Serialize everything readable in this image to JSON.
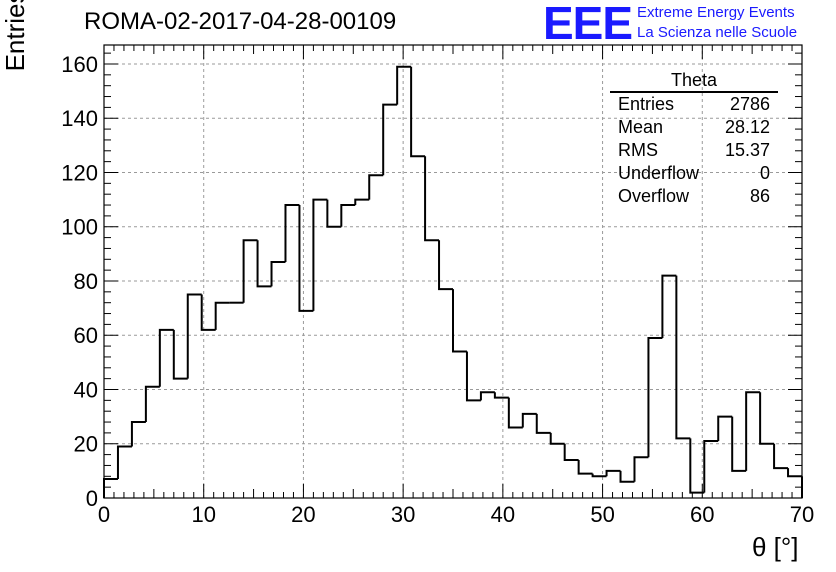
{
  "chart_data": {
    "type": "bar",
    "title": "ROMA-02-2017-04-28-00109",
    "xlabel": "θ [°]",
    "ylabel": "Entries/bin",
    "xlim": [
      0,
      70
    ],
    "ylim": [
      0,
      167
    ],
    "bin_width": 1.4,
    "x_ticks": [
      0,
      10,
      20,
      30,
      40,
      50,
      60,
      70
    ],
    "y_ticks": [
      0,
      20,
      40,
      60,
      80,
      100,
      120,
      140,
      160
    ],
    "grid": true,
    "values": [
      7,
      19,
      28,
      41,
      62,
      44,
      75,
      62,
      72,
      72,
      95,
      78,
      87,
      108,
      69,
      110,
      100,
      108,
      110,
      119,
      145,
      159,
      126,
      95,
      77,
      54,
      36,
      39,
      37,
      26,
      31,
      24,
      20,
      14,
      9,
      8,
      10,
      6,
      15,
      59,
      82,
      22,
      2,
      21,
      30,
      10,
      39,
      20,
      11,
      8
    ],
    "stats": {
      "title": "Theta",
      "rows": [
        {
          "label": "Entries",
          "value": "2786"
        },
        {
          "label": "Mean",
          "value": "28.12"
        },
        {
          "label": "RMS",
          "value": "15.37"
        },
        {
          "label": "Underflow",
          "value": "0"
        },
        {
          "label": "Overflow",
          "value": "86"
        }
      ]
    }
  },
  "logo": {
    "mark": "EEE",
    "line1": "Extreme Energy Events",
    "line2": "La Scienza nelle Scuole",
    "color": "#1a1aff"
  }
}
